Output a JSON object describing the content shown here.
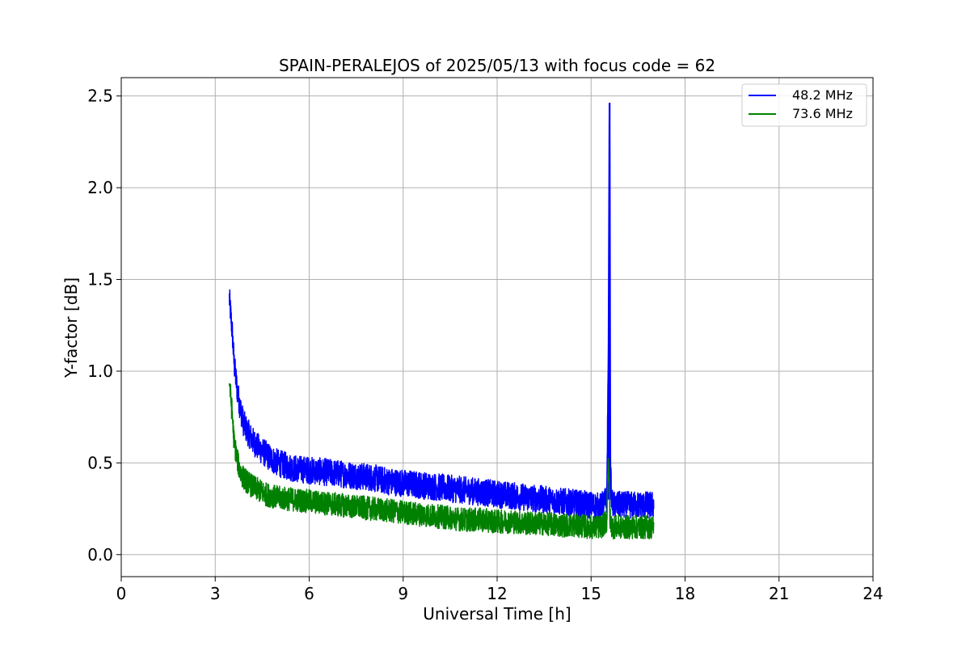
{
  "chart_data": {
    "type": "line",
    "title": "SPAIN-PERALEJOS of 2025/05/13 with focus code = 62",
    "xlabel": "Universal Time [h]",
    "ylabel": "Y-factor [dB]",
    "xlim": [
      0,
      24
    ],
    "ylim": [
      -0.12,
      2.6
    ],
    "xticks": [
      0,
      3,
      6,
      9,
      12,
      15,
      18,
      21,
      24
    ],
    "yticks": [
      0.0,
      0.5,
      1.0,
      1.5,
      2.0,
      2.5
    ],
    "xtick_labels": [
      "0",
      "3",
      "6",
      "9",
      "12",
      "15",
      "18",
      "21",
      "24"
    ],
    "ytick_labels": [
      "0.0",
      "0.5",
      "1.0",
      "1.5",
      "2.0",
      "2.5"
    ],
    "grid": true,
    "legend_position": "top-right",
    "series": [
      {
        "name": "48.2 MHz",
        "color": "#0000ff",
        "x": [
          3.45,
          3.5,
          3.55,
          3.6,
          3.7,
          3.8,
          3.9,
          4.0,
          4.2,
          4.4,
          4.6,
          4.8,
          5.0,
          5.5,
          6.0,
          6.5,
          7.0,
          7.5,
          8.0,
          8.5,
          9.0,
          9.5,
          10.0,
          10.5,
          11.0,
          11.5,
          12.0,
          12.5,
          13.0,
          13.5,
          14.0,
          14.5,
          15.0,
          15.3,
          15.5,
          15.55,
          15.58,
          15.6,
          15.62,
          15.65,
          15.7,
          16.0,
          16.5,
          17.0
        ],
        "y": [
          1.4,
          1.3,
          1.2,
          1.05,
          0.9,
          0.8,
          0.72,
          0.68,
          0.62,
          0.58,
          0.55,
          0.52,
          0.5,
          0.47,
          0.46,
          0.45,
          0.44,
          0.43,
          0.42,
          0.4,
          0.39,
          0.38,
          0.37,
          0.36,
          0.35,
          0.34,
          0.33,
          0.32,
          0.31,
          0.3,
          0.29,
          0.28,
          0.27,
          0.26,
          0.3,
          1.1,
          2.46,
          2.46,
          0.5,
          0.3,
          0.27,
          0.27,
          0.27,
          0.27
        ]
      },
      {
        "name": "73.6 MHz",
        "color": "#008000",
        "x": [
          3.45,
          3.5,
          3.55,
          3.6,
          3.7,
          3.8,
          3.9,
          4.0,
          4.2,
          4.4,
          4.6,
          4.8,
          5.0,
          5.5,
          6.0,
          6.5,
          7.0,
          7.5,
          8.0,
          8.5,
          9.0,
          9.5,
          10.0,
          10.5,
          11.0,
          11.5,
          12.0,
          12.5,
          13.0,
          13.5,
          14.0,
          14.5,
          15.0,
          15.3,
          15.5,
          15.55,
          15.6,
          15.65,
          15.7,
          16.0,
          16.5,
          17.0
        ],
        "y": [
          0.95,
          0.85,
          0.75,
          0.62,
          0.52,
          0.45,
          0.42,
          0.4,
          0.37,
          0.35,
          0.33,
          0.32,
          0.31,
          0.3,
          0.29,
          0.28,
          0.27,
          0.26,
          0.25,
          0.24,
          0.23,
          0.22,
          0.21,
          0.2,
          0.19,
          0.19,
          0.18,
          0.18,
          0.17,
          0.17,
          0.16,
          0.16,
          0.15,
          0.15,
          0.18,
          0.55,
          0.2,
          0.16,
          0.15,
          0.15,
          0.15,
          0.15
        ]
      }
    ]
  }
}
